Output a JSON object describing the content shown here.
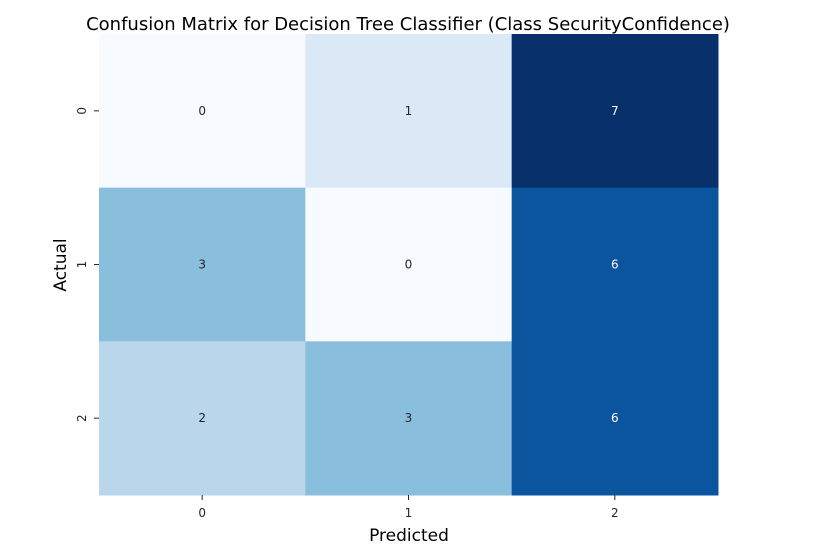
{
  "chart_data": {
    "type": "heatmap",
    "title": "Confusion Matrix for Decision Tree Classifier (Class SecurityConfidence)",
    "xlabel": "Predicted",
    "ylabel": "Actual",
    "x_tick_labels": [
      "0",
      "1",
      "2"
    ],
    "y_tick_labels": [
      "0",
      "1",
      "2"
    ],
    "values": [
      [
        0,
        1,
        7
      ],
      [
        3,
        0,
        6
      ],
      [
        2,
        3,
        6
      ]
    ],
    "colormap": "Blues",
    "vmin": 0,
    "vmax": 7,
    "colorbar": false,
    "annotations": true
  },
  "colors": {
    "scale": [
      "#f7fbff",
      "#dbe9f6",
      "#bad6eb",
      "#89bedc",
      "#539ecd",
      "#2b7bba",
      "#0b559f",
      "#08306b"
    ],
    "annotation_dark": "#262626",
    "annotation_light": "#ffffff"
  }
}
